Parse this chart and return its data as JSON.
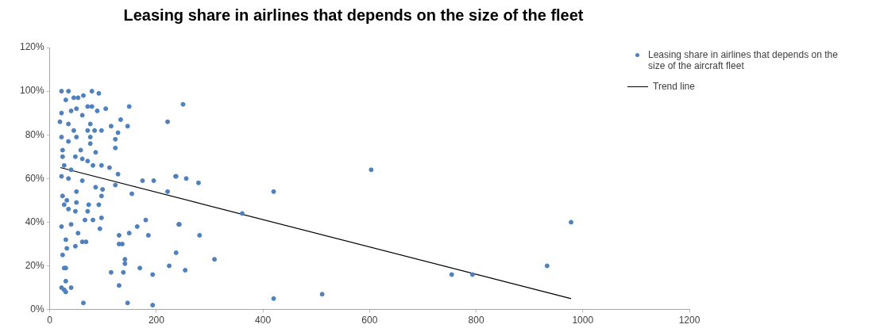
{
  "chart_data": {
    "type": "scatter",
    "title": "Leasing share in airlines that depends on the size of the fleet",
    "xlim": [
      0,
      1200
    ],
    "xticks": [
      0,
      200,
      400,
      600,
      800,
      1000,
      1200
    ],
    "ylim": [
      0,
      120
    ],
    "yticks": [
      {
        "value": 0,
        "label": "0%"
      },
      {
        "value": 20,
        "label": "20%"
      },
      {
        "value": 40,
        "label": "40%"
      },
      {
        "value": 60,
        "label": "60%"
      },
      {
        "value": 80,
        "label": "80%"
      },
      {
        "value": 100,
        "label": "100%"
      },
      {
        "value": 120,
        "label": "120%"
      }
    ],
    "grid": false,
    "legend": "top right",
    "series": [
      {
        "name": "Leasing share in airlines that depends on the size of the aircraft fleet",
        "marker": "circle",
        "color": "#4f81bd",
        "x": [
          22,
          35,
          79,
          92,
          30,
          45,
          63,
          53,
          149,
          71,
          79,
          105,
          89,
          22,
          40,
          50,
          61,
          133,
          221,
          146,
          115,
          76,
          19,
          35,
          45,
          71,
          84,
          97,
          128,
          123,
          123,
          76,
          76,
          86,
          22,
          35,
          50,
          58,
          24,
          48,
          61,
          71,
          24,
          27,
          40,
          81,
          97,
          112,
          128,
          174,
          195,
          237,
          22,
          35,
          61,
          123,
          221,
          154,
          86,
          99,
          50,
          24,
          32,
          50,
          73,
          92,
          97,
          27,
          35,
          48,
          71,
          97,
          66,
          81,
          94,
          22,
          40,
          53,
          180,
          164,
          185,
          242,
          149,
          130,
          30,
          48,
          61,
          68,
          130,
          136,
          32,
          24,
          141,
          141,
          237,
          224,
          27,
          30,
          169,
          138,
          115,
          193,
          30,
          22,
          27,
          30,
          40,
          130,
          63,
          146,
          193,
          250,
          236,
          256,
          279,
          603,
          420,
          361,
          243,
          281,
          309,
          254,
          420,
          511,
          978,
          933,
          754,
          793
        ],
        "values": [
          100,
          100,
          100,
          99,
          96,
          97,
          98,
          97,
          93,
          93,
          93,
          92,
          91,
          90,
          91,
          92,
          89,
          87,
          86,
          84,
          84,
          85,
          86,
          85,
          82,
          82,
          82,
          82,
          81,
          78,
          74,
          79,
          76,
          72,
          79,
          77,
          79,
          73,
          73,
          70,
          69,
          68,
          70,
          66,
          64,
          66,
          66,
          65,
          62,
          59,
          59,
          61,
          61,
          60,
          59,
          57,
          54,
          53,
          56,
          55,
          54,
          52,
          50,
          49,
          48,
          48,
          52,
          48,
          46,
          45,
          45,
          42,
          41,
          41,
          37,
          38,
          39,
          35,
          41,
          38,
          34,
          39,
          35,
          34,
          32,
          29,
          31,
          31,
          30,
          30,
          28,
          25,
          23,
          21,
          26,
          20,
          19,
          19,
          19,
          17,
          17,
          16,
          13,
          10,
          9,
          8,
          10,
          11,
          3,
          3,
          2,
          94,
          61,
          60,
          58,
          64,
          54,
          44,
          39,
          34,
          23,
          18,
          5,
          7,
          40,
          20,
          16,
          16
        ]
      },
      {
        "name": "Trend line",
        "type": "line",
        "marker": "none",
        "color": "#000000",
        "x": [
          20,
          978
        ],
        "values": [
          65,
          5
        ]
      }
    ]
  }
}
